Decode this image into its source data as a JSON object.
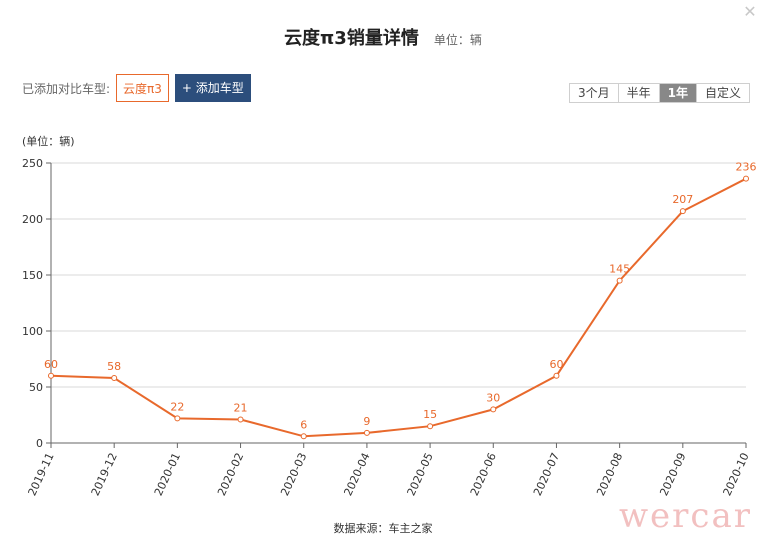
{
  "window": {
    "close_icon": "close-icon"
  },
  "header": {
    "title": "云度π3销量详情",
    "unit": "单位：辆"
  },
  "compare": {
    "label": "已添加对比车型:",
    "model": "云度π3",
    "add_button": "+ 添加车型"
  },
  "range_tabs": [
    {
      "label": "3个月",
      "active": false
    },
    {
      "label": "半年",
      "active": false
    },
    {
      "label": "1年",
      "active": true
    },
    {
      "label": "自定义",
      "active": false
    }
  ],
  "chart_data": {
    "type": "line",
    "title": "云度π3销量详情",
    "ylabel": "(单位：辆)",
    "xlabel": "",
    "ylim": [
      0,
      250
    ],
    "yticks": [
      0,
      50,
      100,
      150,
      200,
      250
    ],
    "grid": true,
    "categories": [
      "2019-11",
      "2019-12",
      "2020-01",
      "2020-02",
      "2020-03",
      "2020-04",
      "2020-05",
      "2020-06",
      "2020-07",
      "2020-08",
      "2020-09",
      "2020-10"
    ],
    "series": [
      {
        "values": [
          60,
          58,
          22,
          21,
          6,
          9,
          15,
          30,
          60,
          145,
          207,
          236
        ],
        "color": "#e8692c"
      }
    ]
  },
  "footer": {
    "source": "数据来源：车主之家",
    "watermark": "wercar"
  },
  "colors": {
    "accent": "#e8692c",
    "button": "#2c4e7c",
    "grid": "#d9d9d9"
  }
}
